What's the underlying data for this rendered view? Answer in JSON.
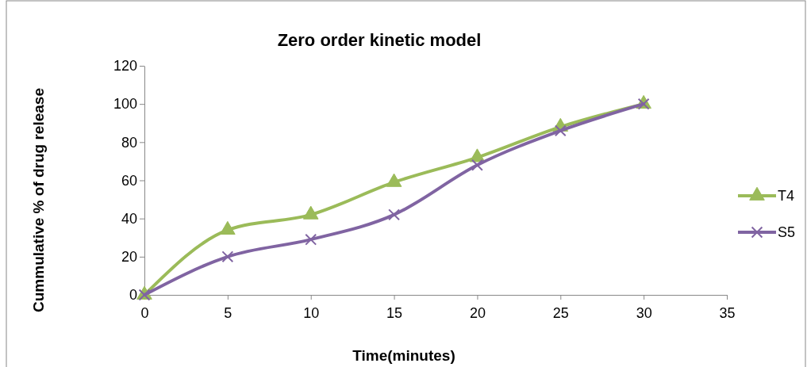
{
  "chart_data": {
    "type": "line",
    "title": "Zero order kinetic model",
    "xlabel": "Time(minutes)",
    "ylabel": "Cummulative %  of drug release",
    "x": [
      0,
      5,
      10,
      15,
      20,
      25,
      30
    ],
    "series": [
      {
        "name": "T4",
        "color": "#9bbb59",
        "marker": "triangle",
        "values": [
          0,
          34,
          42,
          59,
          72,
          88,
          100
        ]
      },
      {
        "name": "S5",
        "color": "#8064a2",
        "marker": "cross",
        "values": [
          0,
          20,
          29,
          42,
          68,
          86,
          100
        ]
      }
    ],
    "xlim": [
      0,
      35
    ],
    "xticks": [
      0,
      5,
      10,
      15,
      20,
      25,
      30,
      35
    ],
    "ylim": [
      0,
      120
    ],
    "yticks": [
      0,
      20,
      40,
      60,
      80,
      100,
      120
    ],
    "grid": false,
    "legend": "right",
    "line_style": "solid"
  }
}
